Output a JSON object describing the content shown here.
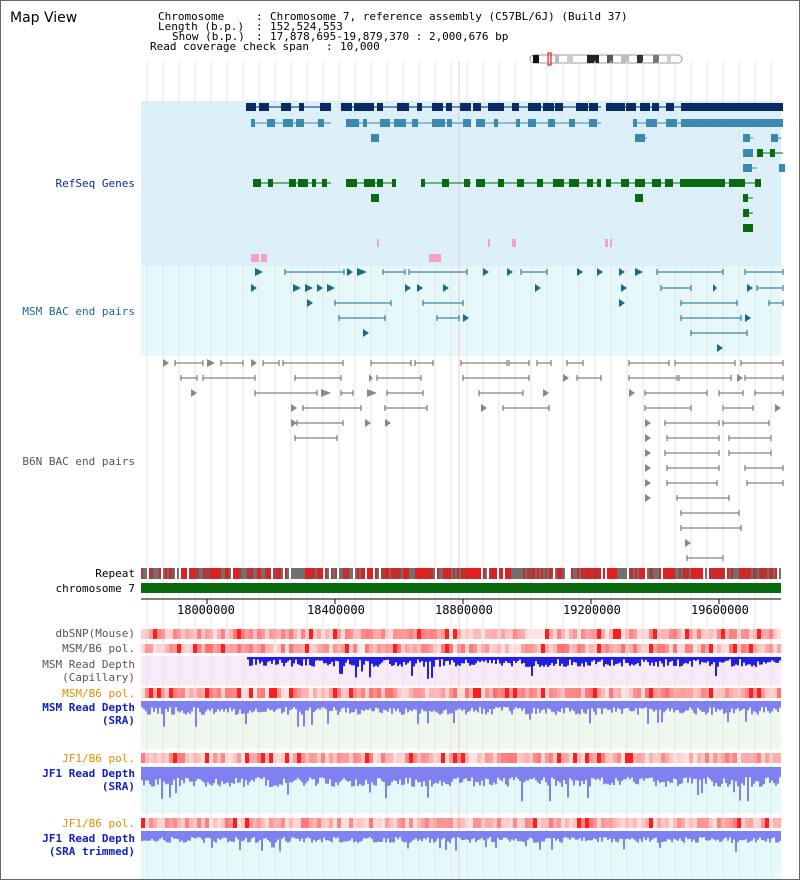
{
  "view": {
    "title": "Map View"
  },
  "header": {
    "chromosome_label": "Chromosome",
    "chromosome_value": "Chromosome 7, reference assembly (C57BL/6J) (Build 37)",
    "length_label": "Length (b.p.)",
    "length_value": "152,524,553",
    "show_label": "Show (b.p.)",
    "show_value": "17,878,695-19,879,370 : 2,000,676 bp",
    "coverage_label": "Read coverage check span",
    "coverage_value": "10,000"
  },
  "tracks": {
    "refseq": "RefSeq Genes",
    "msm_bac": "MSM BAC end pairs",
    "b6n_bac": "B6N BAC end pairs",
    "repeat": "Repeat",
    "chromosome": "chromosome 7",
    "dbsnp": "dbSNP(Mouse)",
    "msm_b6_pol_1": "MSM/B6 pol.",
    "msm_read_depth_cap_1": "MSM Read Depth",
    "msm_read_depth_cap_2": "(Capillary)",
    "msm_b6_pol_2": "MSM/B6 pol.",
    "msm_read_depth_sra_1": "MSM Read Depth",
    "msm_read_depth_sra_2": "(SRA)",
    "jf1_b6_pol_1": "JF1/B6 pol.",
    "jf1_read_depth_sra_1": "JF1 Read Depth",
    "jf1_read_depth_sra_2": "(SRA)",
    "jf1_b6_pol_2": "JF1/B6 pol.",
    "jf1_read_depth_trim_1": "JF1 Read Depth",
    "jf1_read_depth_trim_2": "(SRA trimmed)"
  },
  "axis": {
    "ticks": [
      "18000000",
      "18400000",
      "18800000",
      "19200000",
      "19600000"
    ]
  },
  "colors": {
    "refseq_bg": "#dcf0fa",
    "msm_bg": "#e6f8fa",
    "navy": "#0a2a66",
    "steel": "#3a8ab0",
    "green": "#0a6a10",
    "pink": "#f6a0c8",
    "msm_line": "#1a6a8a",
    "b6n_line": "#666666",
    "repeat_red": "#e02020",
    "chrom_green": "#0a6a10",
    "depth_blue": "#2020e0",
    "depth_light": "#8080f0"
  }
}
